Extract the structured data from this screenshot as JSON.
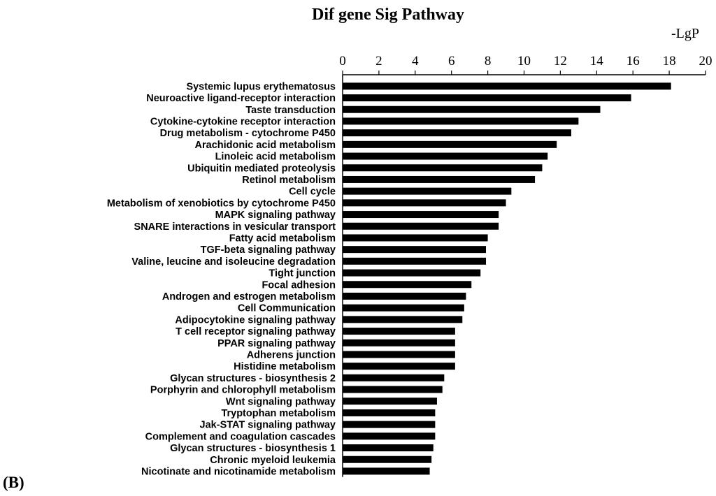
{
  "chart_data": {
    "type": "bar",
    "orientation": "horizontal",
    "title": "Dif gene Sig Pathway",
    "xlabel": "-LgP",
    "ylabel": "",
    "panel_label": "(B)",
    "xlim": [
      0,
      20
    ],
    "xticks": [
      "0",
      "2",
      "4",
      "6",
      "8",
      "10",
      "12",
      "14",
      "16",
      "18",
      "20"
    ],
    "axis_position": "top",
    "grid": false,
    "legend": "none",
    "bar_color": "#000000",
    "categories": [
      "Systemic lupus erythematosus",
      "Neuroactive ligand-receptor interaction",
      "Taste transduction",
      "Cytokine-cytokine receptor interaction",
      "Drug metabolism - cytochrome P450",
      "Arachidonic acid metabolism",
      "Linoleic acid metabolism",
      "Ubiquitin mediated proteolysis",
      "Retinol metabolism",
      "Cell cycle",
      "Metabolism of xenobiotics by cytochrome P450",
      "MAPK signaling pathway",
      "SNARE interactions in vesicular transport",
      "Fatty acid metabolism",
      "TGF-beta signaling pathway",
      "Valine, leucine and isoleucine degradation",
      "Tight junction",
      "Focal adhesion",
      "Androgen and estrogen metabolism",
      "Cell Communication",
      "Adipocytokine signaling pathway",
      "T cell receptor signaling pathway",
      "PPAR signaling pathway",
      "Adherens junction",
      "Histidine metabolism",
      "Glycan structures - biosynthesis 2",
      "Porphyrin and chlorophyll metabolism",
      "Wnt signaling pathway",
      "Tryptophan metabolism",
      "Jak-STAT signaling pathway",
      "Complement and coagulation cascades",
      "Glycan structures - biosynthesis 1",
      "Chronic myeloid leukemia",
      "Nicotinate and nicotinamide metabolism"
    ],
    "values": [
      18.1,
      15.9,
      14.2,
      13.0,
      12.6,
      11.8,
      11.3,
      11.0,
      10.6,
      9.3,
      9.0,
      8.6,
      8.6,
      8.0,
      7.9,
      7.9,
      7.6,
      7.1,
      6.8,
      6.7,
      6.6,
      6.2,
      6.2,
      6.2,
      6.2,
      5.6,
      5.5,
      5.2,
      5.1,
      5.1,
      5.1,
      5.0,
      4.9,
      4.8
    ]
  }
}
